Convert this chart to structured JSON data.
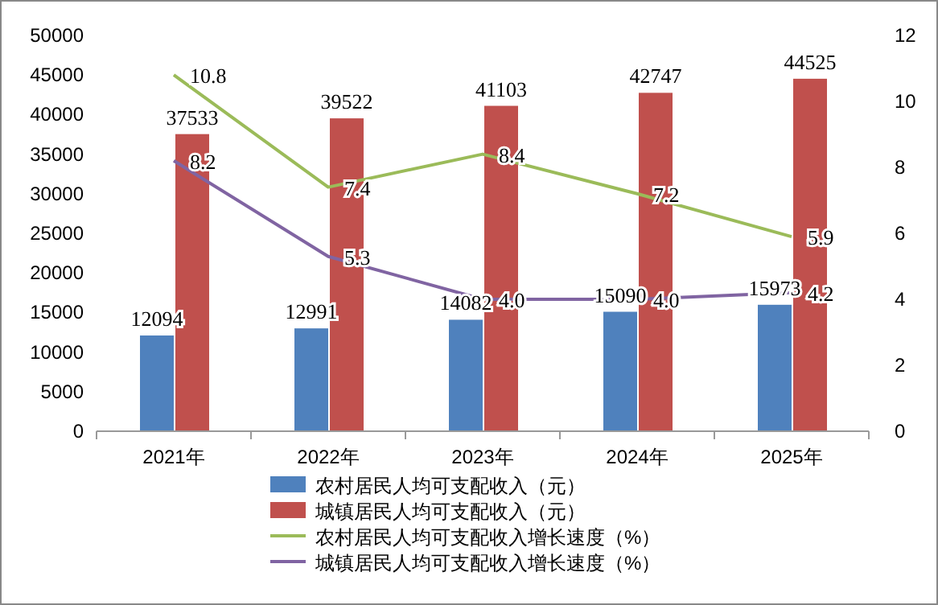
{
  "chart_data": {
    "type": "bar",
    "categories": [
      "2021年",
      "2022年",
      "2023年",
      "2024年",
      "2025年"
    ],
    "series": [
      {
        "name": "农村居民人均可支配收入（元）",
        "color": "#4f81bd",
        "values": [
          12094,
          12991,
          14082,
          15090,
          15973
        ]
      },
      {
        "name": "城镇居民人均可支配收入（元）",
        "color": "#c0504d",
        "values": [
          37533,
          39522,
          41103,
          42747,
          44525
        ]
      },
      {
        "name": "农村居民人均可支配收入增长速度（%）",
        "type": "line",
        "axis": "y2",
        "color": "#9bbb59",
        "values": [
          10.8,
          7.4,
          8.4,
          7.2,
          5.9
        ],
        "value_labels": [
          "10.8",
          "7.4",
          "8.4",
          "7.2",
          "5.9"
        ]
      },
      {
        "name": "城镇居民人均可支配收入增长速度（%）",
        "type": "line",
        "axis": "y2",
        "color": "#8064a2",
        "values": [
          8.2,
          5.3,
          4.0,
          4.0,
          4.2
        ],
        "value_labels": [
          "8.2",
          "5.3",
          "4.0",
          "4.0",
          "4.2"
        ]
      }
    ],
    "ylim": [
      0,
      50000
    ],
    "yticks": [
      0,
      5000,
      10000,
      15000,
      20000,
      25000,
      30000,
      35000,
      40000,
      45000,
      50000
    ],
    "y2lim": [
      0,
      12
    ],
    "y2ticks": [
      0,
      2,
      4,
      6,
      8,
      10,
      12
    ],
    "data_labels": true,
    "legend": "bottom",
    "grid": false,
    "marker": "none"
  }
}
